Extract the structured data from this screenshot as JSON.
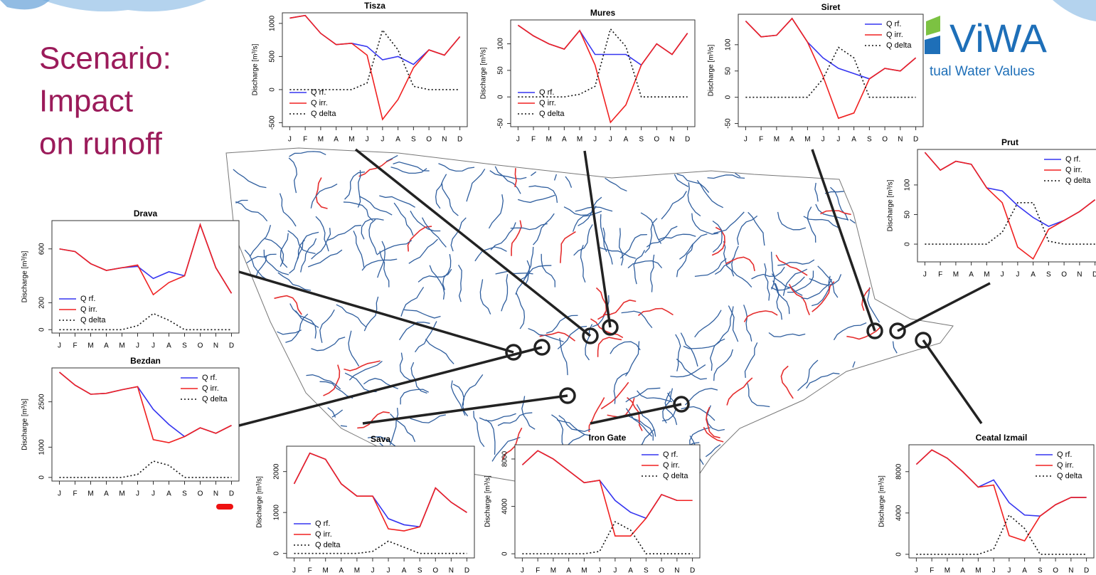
{
  "slide": {
    "title": [
      "Scenario:",
      "Impact",
      "on runoff"
    ],
    "logo": "ViWA",
    "logo_sub": "tual Water Values"
  },
  "chart_data": [
    {
      "type": "line",
      "title": "Tisza",
      "ylabel": "Discharge [m³/s]",
      "categories": [
        "J",
        "F",
        "M",
        "A",
        "M",
        "J",
        "J",
        "A",
        "S",
        "O",
        "N",
        "D"
      ],
      "ylim": [
        -560,
        1160
      ],
      "yticks": [
        -500,
        0,
        500,
        1000
      ],
      "legend": "bottomleft",
      "series": [
        {
          "name": "Q rf.",
          "color": "#3535f0",
          "values": [
            1080,
            1120,
            850,
            680,
            700,
            650,
            450,
            500,
            380,
            600,
            520,
            800
          ]
        },
        {
          "name": "Q irr.",
          "color": "#f02020",
          "values": [
            1080,
            1120,
            850,
            680,
            700,
            520,
            -450,
            -150,
            330,
            600,
            520,
            800
          ]
        },
        {
          "name": "Q delta",
          "color": "#111111",
          "linestyle": "dotted",
          "values": [
            0,
            0,
            0,
            0,
            0,
            100,
            900,
            600,
            50,
            0,
            0,
            0
          ]
        }
      ]
    },
    {
      "type": "line",
      "title": "Mures",
      "ylabel": "Discharge [m³/s]",
      "categories": [
        "J",
        "F",
        "M",
        "A",
        "M",
        "J",
        "J",
        "A",
        "S",
        "O",
        "N",
        "D"
      ],
      "ylim": [
        -56,
        145
      ],
      "yticks": [
        -50,
        0,
        50,
        100
      ],
      "legend": "bottomleft",
      "series": [
        {
          "name": "Q rf.",
          "color": "#3535f0",
          "values": [
            135,
            115,
            100,
            90,
            125,
            80,
            80,
            80,
            60,
            100,
            80,
            120
          ]
        },
        {
          "name": "Q irr.",
          "color": "#f02020",
          "values": [
            135,
            115,
            100,
            90,
            125,
            60,
            -48,
            -15,
            60,
            100,
            80,
            120
          ]
        },
        {
          "name": "Q delta",
          "color": "#111111",
          "linestyle": "dotted",
          "values": [
            0,
            0,
            0,
            0,
            5,
            20,
            128,
            95,
            0,
            0,
            0,
            0
          ]
        }
      ]
    },
    {
      "type": "line",
      "title": "Siret",
      "ylabel": "Discharge [m³/s]",
      "categories": [
        "J",
        "F",
        "M",
        "A",
        "M",
        "J",
        "J",
        "A",
        "S",
        "O",
        "N",
        "D"
      ],
      "ylim": [
        -56,
        158
      ],
      "yticks": [
        -50,
        0,
        50,
        100
      ],
      "legend": "topright",
      "series": [
        {
          "name": "Q rf.",
          "color": "#3535f0",
          "values": [
            145,
            115,
            118,
            150,
            105,
            75,
            55,
            45,
            35,
            55,
            50,
            75
          ]
        },
        {
          "name": "Q irr.",
          "color": "#f02020",
          "values": [
            145,
            115,
            118,
            150,
            105,
            40,
            -40,
            -30,
            35,
            55,
            50,
            75
          ]
        },
        {
          "name": "Q delta",
          "color": "#111111",
          "linestyle": "dotted",
          "values": [
            0,
            0,
            0,
            0,
            0,
            35,
            95,
            75,
            0,
            0,
            0,
            0
          ]
        }
      ]
    },
    {
      "type": "line",
      "title": "Prut",
      "ylabel": "Discharge [m³/s]",
      "categories": [
        "J",
        "F",
        "M",
        "A",
        "M",
        "J",
        "J",
        "A",
        "S",
        "O",
        "N",
        "D"
      ],
      "ylim": [
        -30,
        160
      ],
      "yticks": [
        0,
        50,
        100
      ],
      "legend": "topright",
      "series": [
        {
          "name": "Q rf.",
          "color": "#3535f0",
          "values": [
            155,
            125,
            140,
            135,
            95,
            90,
            65,
            45,
            30,
            40,
            55,
            75
          ]
        },
        {
          "name": "Q irr.",
          "color": "#f02020",
          "values": [
            155,
            125,
            140,
            135,
            95,
            70,
            -5,
            -25,
            25,
            40,
            55,
            75
          ]
        },
        {
          "name": "Q delta",
          "color": "#111111",
          "linestyle": "dotted",
          "values": [
            0,
            0,
            0,
            0,
            0,
            20,
            70,
            70,
            5,
            0,
            0,
            0
          ]
        }
      ]
    },
    {
      "type": "line",
      "title": "Drava",
      "ylabel": "Discharge [m³/s]",
      "categories": [
        "J",
        "F",
        "M",
        "A",
        "M",
        "J",
        "J",
        "A",
        "S",
        "O",
        "N",
        "D"
      ],
      "ylim": [
        -25,
        810
      ],
      "yticks": [
        0,
        200,
        600
      ],
      "legend": "bottomleft",
      "series": [
        {
          "name": "Q rf.",
          "color": "#3535f0",
          "values": [
            600,
            580,
            490,
            440,
            460,
            470,
            380,
            430,
            400,
            780,
            460,
            270
          ]
        },
        {
          "name": "Q irr.",
          "color": "#f02020",
          "values": [
            600,
            580,
            490,
            440,
            460,
            480,
            260,
            350,
            400,
            780,
            460,
            270
          ]
        },
        {
          "name": "Q delta",
          "color": "#111111",
          "linestyle": "dotted",
          "values": [
            0,
            0,
            0,
            0,
            0,
            30,
            120,
            70,
            0,
            0,
            0,
            0
          ]
        }
      ]
    },
    {
      "type": "line",
      "title": "Bezdan",
      "ylabel": "Discharge [m³/s]",
      "categories": [
        "J",
        "F",
        "M",
        "A",
        "M",
        "J",
        "J",
        "A",
        "S",
        "O",
        "N",
        "D"
      ],
      "ylim": [
        -120,
        3620
      ],
      "yticks": [
        0,
        1000,
        2500
      ],
      "legend": "topright",
      "series": [
        {
          "name": "Q rf.",
          "color": "#3535f0",
          "values": [
            3480,
            3050,
            2750,
            2780,
            2900,
            3000,
            2250,
            1750,
            1350,
            1640,
            1460,
            1720
          ]
        },
        {
          "name": "Q irr.",
          "color": "#f02020",
          "values": [
            3480,
            3050,
            2750,
            2780,
            2900,
            3000,
            1250,
            1150,
            1350,
            1640,
            1460,
            1720
          ]
        },
        {
          "name": "Q delta",
          "color": "#111111",
          "linestyle": "dotted",
          "values": [
            0,
            0,
            0,
            0,
            0,
            100,
            540,
            400,
            0,
            0,
            0,
            0
          ]
        }
      ]
    },
    {
      "type": "line",
      "title": "Sava",
      "ylabel": "Discharge [m³/s]",
      "categories": [
        "J",
        "F",
        "M",
        "A",
        "M",
        "J",
        "J",
        "A",
        "S",
        "O",
        "N",
        "D"
      ],
      "ylim": [
        -110,
        2620
      ],
      "yticks": [
        0,
        1000,
        2000
      ],
      "legend": "bottomleft",
      "series": [
        {
          "name": "Q rf.",
          "color": "#3535f0",
          "values": [
            1700,
            2450,
            2300,
            1700,
            1400,
            1400,
            850,
            700,
            650,
            1600,
            1250,
            1000
          ]
        },
        {
          "name": "Q irr.",
          "color": "#f02020",
          "values": [
            1700,
            2450,
            2300,
            1700,
            1400,
            1400,
            600,
            550,
            650,
            1600,
            1250,
            1000
          ]
        },
        {
          "name": "Q delta",
          "color": "#111111",
          "linestyle": "dotted",
          "values": [
            0,
            0,
            0,
            0,
            0,
            50,
            300,
            150,
            0,
            0,
            0,
            0
          ]
        }
      ]
    },
    {
      "type": "line",
      "title": "Iron Gate",
      "ylabel": "Discharge [m³/s]",
      "categories": [
        "J",
        "F",
        "M",
        "A",
        "M",
        "J",
        "J",
        "A",
        "S",
        "O",
        "N",
        "D"
      ],
      "ylim": [
        -350,
        9200
      ],
      "yticks": [
        0,
        4000,
        8000
      ],
      "legend": "topright",
      "series": [
        {
          "name": "Q rf.",
          "color": "#3535f0",
          "values": [
            7500,
            8700,
            8000,
            7000,
            6000,
            6200,
            4500,
            3500,
            3000,
            5000,
            4500,
            4500
          ]
        },
        {
          "name": "Q irr.",
          "color": "#f02020",
          "values": [
            7500,
            8700,
            8000,
            7000,
            6000,
            6200,
            1500,
            1500,
            3000,
            5000,
            4500,
            4500
          ]
        },
        {
          "name": "Q delta",
          "color": "#111111",
          "linestyle": "dotted",
          "values": [
            0,
            0,
            0,
            0,
            0,
            200,
            2700,
            2000,
            0,
            0,
            0,
            0
          ]
        }
      ]
    },
    {
      "type": "line",
      "title": "Ceatal Izmail",
      "ylabel": "Discharge [m³/s]",
      "categories": [
        "J",
        "F",
        "M",
        "A",
        "M",
        "J",
        "J",
        "A",
        "S",
        "O",
        "N",
        "D"
      ],
      "ylim": [
        -350,
        10600
      ],
      "yticks": [
        0,
        4000,
        8000
      ],
      "legend": "topright",
      "series": [
        {
          "name": "Q rf.",
          "color": "#3535f0",
          "values": [
            8700,
            10100,
            9300,
            8000,
            6500,
            7200,
            5000,
            3800,
            3700,
            4800,
            5500,
            5500
          ]
        },
        {
          "name": "Q irr.",
          "color": "#f02020",
          "values": [
            8700,
            10100,
            9300,
            8000,
            6500,
            6700,
            1800,
            1300,
            3700,
            4800,
            5500,
            5500
          ]
        },
        {
          "name": "Q delta",
          "color": "#111111",
          "linestyle": "dotted",
          "values": [
            0,
            0,
            0,
            0,
            0,
            500,
            3800,
            2500,
            0,
            0,
            0,
            0
          ]
        }
      ]
    }
  ]
}
